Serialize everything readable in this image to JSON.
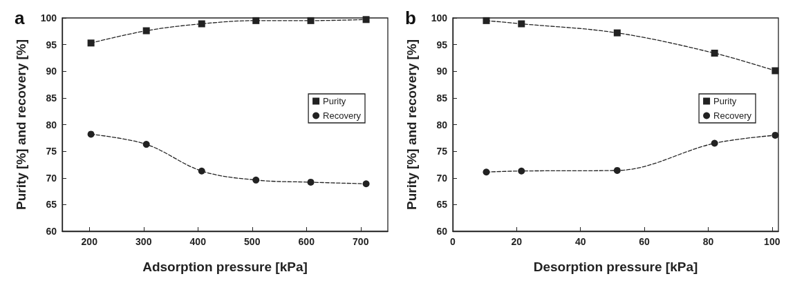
{
  "chart_data": [
    {
      "type": "line",
      "title": "a",
      "xlabel": "Adsorption pressure [kPa]",
      "ylabel": "Purity [%] and recovery [%]",
      "xlim": [
        150,
        750
      ],
      "xticks": [
        200,
        300,
        400,
        500,
        600,
        700
      ],
      "ylim": [
        60,
        100
      ],
      "yticks": [
        60,
        65,
        70,
        75,
        80,
        85,
        90,
        95,
        100
      ],
      "legend": "right",
      "line_style": "dashed",
      "grid": false,
      "series": [
        {
          "name": "Purity",
          "color": "#222222",
          "marker": "square",
          "x": [
            203,
            305,
            407,
            507,
            608,
            710
          ],
          "values": [
            95.3,
            97.6,
            98.9,
            99.5,
            99.5,
            99.7
          ]
        },
        {
          "name": "Recovery",
          "color": "#222222",
          "marker": "circle",
          "x": [
            203,
            305,
            407,
            507,
            608,
            710
          ],
          "values": [
            78.2,
            76.3,
            71.3,
            69.6,
            69.2,
            68.9
          ]
        }
      ]
    },
    {
      "type": "line",
      "title": "b",
      "xlabel": "Desorption pressure [kPa]",
      "ylabel": "Purity [%] and recovery [%]",
      "xlim": [
        0,
        102
      ],
      "xticks": [
        0,
        20,
        40,
        60,
        80,
        100
      ],
      "ylim": [
        60,
        100
      ],
      "yticks": [
        60,
        65,
        70,
        75,
        80,
        85,
        90,
        95,
        100
      ],
      "legend": "right",
      "line_style": "dashed",
      "grid": false,
      "series": [
        {
          "name": "Purity",
          "color": "#222222",
          "marker": "square",
          "x": [
            10.5,
            21.5,
            51.5,
            82,
            101
          ],
          "values": [
            99.5,
            98.9,
            97.2,
            93.4,
            90.1
          ]
        },
        {
          "name": "Recovery",
          "color": "#222222",
          "marker": "circle",
          "x": [
            10.5,
            21.5,
            51.5,
            82,
            101
          ],
          "values": [
            71.1,
            71.3,
            71.4,
            76.5,
            78.0
          ]
        }
      ]
    }
  ]
}
